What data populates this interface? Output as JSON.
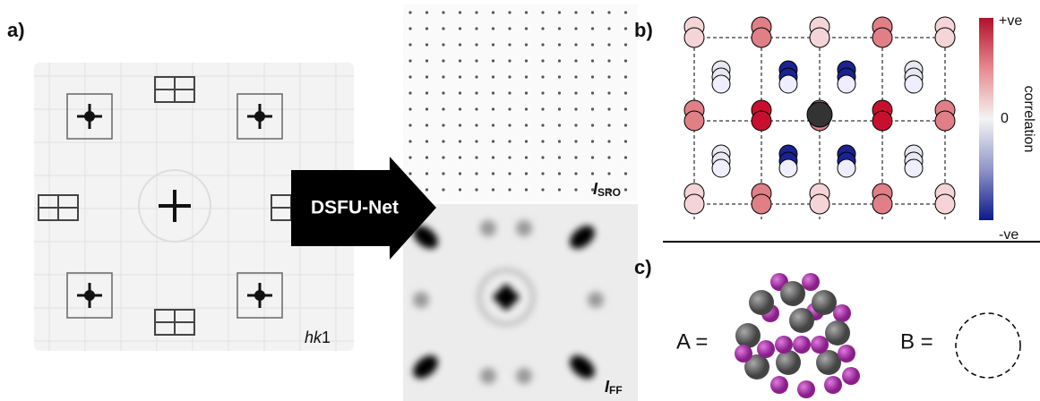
{
  "panel_a": {
    "label": "a)",
    "input_label": {
      "italic": "hk",
      "plain": "1"
    },
    "network": "DSFU-Net",
    "output_sro": {
      "symbol": "I",
      "subscript": "SRO"
    },
    "output_ff": {
      "symbol": "I",
      "subscript": "FF"
    }
  },
  "panel_b": {
    "label": "b)",
    "colorbar": {
      "top": "+ve",
      "middle": "0",
      "bottom": "-ve",
      "title": "correlation"
    }
  },
  "panel_c": {
    "label": "c)",
    "a_label": "A =",
    "b_label": "B ="
  }
}
